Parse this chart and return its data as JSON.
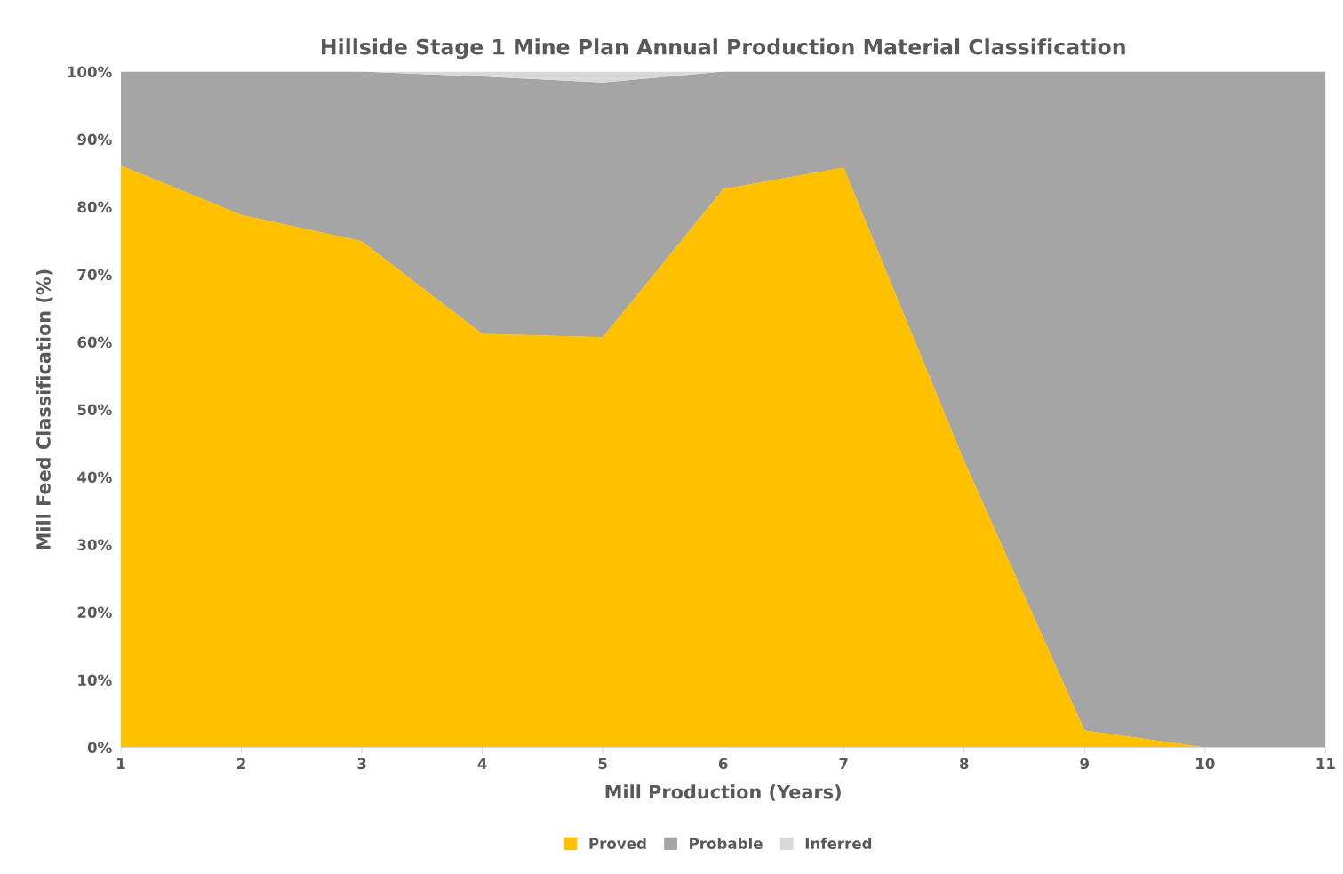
{
  "chart_data": {
    "type": "area",
    "stacked": true,
    "title": "Hillside Stage 1 Mine Plan Annual Production Material Classification",
    "xlabel": "Mill Production (Years)",
    "ylabel": "Mill Feed Classification (%)",
    "x": [
      1,
      2,
      3,
      4,
      5,
      6,
      7,
      8,
      9,
      10,
      11
    ],
    "xlim": [
      1,
      11
    ],
    "xticks": [
      1,
      2,
      3,
      4,
      5,
      6,
      7,
      8,
      9,
      10,
      11
    ],
    "ylim": [
      0,
      100
    ],
    "yticks": [
      {
        "value": 0,
        "label": "0%"
      },
      {
        "value": 10,
        "label": "10%"
      },
      {
        "value": 20,
        "label": "20%"
      },
      {
        "value": 30,
        "label": "30%"
      },
      {
        "value": 40,
        "label": "40%"
      },
      {
        "value": 50,
        "label": "50%"
      },
      {
        "value": 60,
        "label": "60%"
      },
      {
        "value": 70,
        "label": "70%"
      },
      {
        "value": 80,
        "label": "80%"
      },
      {
        "value": 90,
        "label": "90%"
      },
      {
        "value": 100,
        "label": "100%"
      }
    ],
    "series": [
      {
        "name": "Proved",
        "color": "#ffc000",
        "values": [
          86.1,
          78.8,
          74.9,
          61.2,
          60.7,
          82.6,
          85.8,
          42.4,
          2.5,
          0,
          0
        ]
      },
      {
        "name": "Probable",
        "color": "#a5a5a5",
        "values": [
          13.9,
          21.2,
          25.1,
          38.1,
          37.7,
          17.4,
          14.2,
          57.6,
          97.5,
          100,
          100
        ]
      },
      {
        "name": "Inferred",
        "color": "#d9d9d9",
        "values": [
          0,
          0,
          0,
          0.7,
          1.6,
          0,
          0,
          0,
          0,
          0,
          0
        ]
      }
    ],
    "grid": false,
    "legend": "bottom"
  }
}
